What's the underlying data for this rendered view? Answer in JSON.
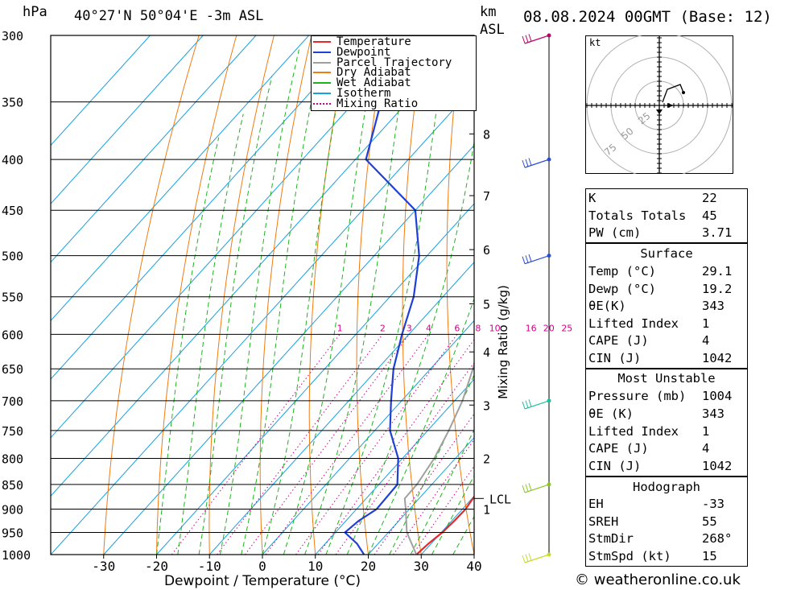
{
  "header": {
    "p_unit": "hPa",
    "location": "40°27'N 50°04'E -3m ASL",
    "km_label": "km",
    "asl_label": "ASL",
    "datetime": "08.08.2024 00GMT (Base: 12)"
  },
  "footer": {
    "credit": "© weatheronline.co.uk"
  },
  "colors": {
    "temperature": "#e8262b",
    "dewpoint": "#1f3fd6",
    "parcel": "#a0a0a0",
    "dry_adiabat": "#f07b10",
    "wet_adiabat": "#1cb41c",
    "isotherm": "#18a0e0",
    "mixing_ratio": "#d0008a"
  },
  "legend": [
    {
      "label": "Temperature",
      "key": "temperature"
    },
    {
      "label": "Dewpoint",
      "key": "dewpoint"
    },
    {
      "label": "Parcel Trajectory",
      "key": "parcel"
    },
    {
      "label": "Dry Adiabat",
      "key": "dry_adiabat"
    },
    {
      "label": "Wet Adiabat",
      "key": "wet_adiabat"
    },
    {
      "label": "Isotherm",
      "key": "isotherm"
    },
    {
      "label": "Mixing Ratio",
      "key": "mixing_ratio"
    }
  ],
  "chart_data": {
    "type": "line",
    "title": "",
    "xlabel": "Dewpoint / Temperature (°C)",
    "ylabel": "hPa",
    "y2label": "Mixing Ratio (g/kg)",
    "xlim": [
      -40,
      40
    ],
    "ylim": [
      1000,
      300
    ],
    "y_scale": "log",
    "x_ticks": [
      -30,
      -20,
      -10,
      0,
      10,
      20,
      30,
      40
    ],
    "pressure_levels": [
      300,
      350,
      400,
      450,
      500,
      550,
      600,
      650,
      700,
      750,
      800,
      850,
      900,
      950,
      1000
    ],
    "km_ticks": [
      {
        "label": "8",
        "p": 377
      },
      {
        "label": "7",
        "p": 435
      },
      {
        "label": "6",
        "p": 493
      },
      {
        "label": "5",
        "p": 559
      },
      {
        "label": "4",
        "p": 625
      },
      {
        "label": "3",
        "p": 707
      },
      {
        "label": "2",
        "p": 800
      },
      {
        "label": "1",
        "p": 900
      }
    ],
    "lcl": {
      "label": "LCL",
      "p": 878
    },
    "mixing_ratio_labels": [
      "1",
      "2",
      "3",
      "4",
      "6",
      "8",
      "10",
      "16",
      "20",
      "25"
    ],
    "mixing_ratio_values": [
      1,
      2,
      3,
      4,
      6,
      8,
      10,
      16,
      20,
      25
    ],
    "mixing_ratio_label_p": 600,
    "series": [
      {
        "name": "Temperature",
        "key": "temperature",
        "points": [
          [
            1000,
            29.1
          ],
          [
            975,
            29.5
          ],
          [
            950,
            30.2
          ],
          [
            925,
            30.5
          ],
          [
            900,
            30.6
          ],
          [
            850,
            29.6
          ],
          [
            800,
            28.2
          ],
          [
            750,
            28.0
          ],
          [
            700,
            25.5
          ],
          [
            650,
            20.8
          ],
          [
            600,
            16.0
          ],
          [
            550,
            8.8
          ],
          [
            500,
            2.2
          ],
          [
            450,
            -1.0
          ],
          [
            400,
            -3.5
          ],
          [
            350,
            -8.0
          ]
        ]
      },
      {
        "name": "Dewpoint",
        "key": "dewpoint",
        "points": [
          [
            1000,
            19.2
          ],
          [
            975,
            16.0
          ],
          [
            950,
            11.8
          ],
          [
            925,
            12.4
          ],
          [
            900,
            13.8
          ],
          [
            850,
            13.5
          ],
          [
            800,
            9.2
          ],
          [
            750,
            2.9
          ],
          [
            700,
            -2.0
          ],
          [
            650,
            -7.0
          ],
          [
            600,
            -11.3
          ],
          [
            550,
            -15.5
          ],
          [
            500,
            -21.5
          ],
          [
            450,
            -30.0
          ],
          [
            400,
            -48.0
          ],
          [
            350,
            -55.0
          ],
          [
            300,
            -61.0
          ]
        ]
      },
      {
        "name": "Parcel Trajectory",
        "key": "parcel",
        "points": [
          [
            1000,
            29.1
          ],
          [
            950,
            23.5
          ],
          [
            900,
            19.3
          ],
          [
            878,
            17.3
          ],
          [
            850,
            17.2
          ],
          [
            800,
            16.0
          ],
          [
            750,
            14.0
          ],
          [
            700,
            11.5
          ],
          [
            650,
            8.0
          ],
          [
            600,
            4.0
          ],
          [
            550,
            -0.5
          ],
          [
            500,
            -5.0
          ],
          [
            450,
            -10.5
          ],
          [
            400,
            -17.0
          ],
          [
            350,
            -24.5
          ],
          [
            300,
            -34.0
          ]
        ]
      }
    ]
  },
  "wind_profile": {
    "barbs": [
      {
        "p": 300,
        "color": "#c0006a"
      },
      {
        "p": 400,
        "color": "#2a4dd6"
      },
      {
        "p": 500,
        "color": "#2a4dd6"
      },
      {
        "p": 700,
        "color": "#1cc0a0"
      },
      {
        "p": 850,
        "color": "#8ac81c"
      },
      {
        "p": 1000,
        "color": "#c8dc2a"
      }
    ]
  },
  "hodograph": {
    "unit": "kt",
    "ring_labels": [
      "25",
      "50",
      "75"
    ]
  },
  "indices": {
    "general": [
      {
        "label": "K",
        "value": "22"
      },
      {
        "label": "Totals Totals",
        "value": "45"
      },
      {
        "label": "PW (cm)",
        "value": "3.71"
      }
    ],
    "surface": {
      "title": "Surface",
      "rows": [
        {
          "label": "Temp (°C)",
          "value": "29.1"
        },
        {
          "label": "Dewp (°C)",
          "value": "19.2"
        },
        {
          "label": "θE(K)",
          "value": "343"
        },
        {
          "label": "Lifted Index",
          "value": "1"
        },
        {
          "label": "CAPE (J)",
          "value": "4"
        },
        {
          "label": "CIN (J)",
          "value": "1042"
        }
      ]
    },
    "most_unstable": {
      "title": "Most Unstable",
      "rows": [
        {
          "label": "Pressure (mb)",
          "value": "1004"
        },
        {
          "label": "θE (K)",
          "value": "343"
        },
        {
          "label": "Lifted Index",
          "value": "1"
        },
        {
          "label": "CAPE (J)",
          "value": "4"
        },
        {
          "label": "CIN (J)",
          "value": "1042"
        }
      ]
    },
    "hodograph": {
      "title": "Hodograph",
      "rows": [
        {
          "label": "EH",
          "value": "-33"
        },
        {
          "label": "SREH",
          "value": "55"
        },
        {
          "label": "StmDir",
          "value": "268°"
        },
        {
          "label": "StmSpd (kt)",
          "value": "15"
        }
      ]
    }
  }
}
